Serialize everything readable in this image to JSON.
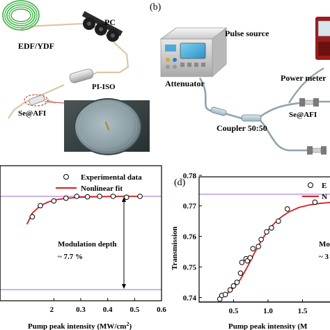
{
  "panels": {
    "a": {
      "labels": {
        "edf": "EDF/YDF",
        "pc": "PC",
        "pi_iso": "PI-ISO",
        "se_afi": "Se@AFI"
      }
    },
    "b": {
      "tag": "(b)",
      "labels": {
        "pulse_source": "Pulse source",
        "power_meter": "Power meter",
        "attenuator": "Attenuator",
        "se_afi": "Se@AFI",
        "coupler": "Coupler 50:50"
      }
    },
    "c": {
      "legend": {
        "experimental": "Experimental data",
        "fit": "Nonlinear fit"
      },
      "annotation": {
        "line1": "Modulation depth",
        "line2": "~ 7.7 %"
      },
      "xlabel": "Pump peak intensity (MW/cm",
      "xlabel_sup": "2",
      "xlabel_end": ")"
    },
    "d": {
      "tag": "(d)",
      "legend": {
        "experimental": "E",
        "fit": "N"
      },
      "annotation": {
        "line1": "Mo",
        "line2": "~ 3"
      },
      "xlabel": "Pump peak intensity (M",
      "ylabel": "Transmission"
    }
  },
  "chart_data": [
    {
      "type": "scatter",
      "panel": "c",
      "xlabel": "Pump peak intensity (MW/cm2)",
      "xlim": [
        0.0,
        0.6
      ],
      "x_ticks": [
        "2",
        "0.3",
        "0.4",
        "0.5",
        "0.6"
      ],
      "x_tick_values": [
        0.2,
        0.3,
        0.4,
        0.5,
        0.6
      ],
      "reference_lines": [
        "upper saturation level",
        "lower level"
      ],
      "series": [
        {
          "name": "Experimental data",
          "style": "hollow-circle",
          "x": [
            0.12,
            0.15,
            0.2,
            0.245,
            0.285,
            0.325,
            0.37,
            0.42,
            0.47,
            0.52
          ],
          "y_rel": [
            0.78,
            0.9,
            0.95,
            0.98,
            1.0,
            0.995,
            1.0,
            1.0,
            0.99,
            1.0
          ]
        },
        {
          "name": "Nonlinear fit",
          "style": "red-line",
          "x": [
            0.1,
            0.12,
            0.15,
            0.18,
            0.21,
            0.25,
            0.3,
            0.35,
            0.4,
            0.45,
            0.52
          ],
          "y_rel": [
            0.7,
            0.82,
            0.9,
            0.94,
            0.965,
            0.98,
            0.99,
            0.995,
            0.998,
            1.0,
            1.0
          ]
        }
      ],
      "modulation_depth_percent": 7.7,
      "colors": {
        "fit": "#d81e1e",
        "reference": "#b985d6",
        "points": "#000000"
      }
    },
    {
      "type": "scatter",
      "panel": "d",
      "xlabel": "Pump peak intensity (M",
      "ylabel": "Transmission",
      "ylim": [
        0.7385,
        0.7795
      ],
      "y_ticks": [
        0.74,
        0.75,
        0.76,
        0.77,
        0.78
      ],
      "x_ticks": [
        "0.5",
        "1.0",
        "1.5"
      ],
      "x_tick_values": [
        0.5,
        1.0,
        1.5
      ],
      "xlim": [
        0.0,
        2.02
      ],
      "reference_lines_y": [
        0.7738,
        0.7387
      ],
      "series": [
        {
          "name": "E",
          "style": "hollow-circle",
          "x": [
            0.3,
            0.33,
            0.38,
            0.45,
            0.5,
            0.55,
            0.6,
            0.62,
            0.68,
            0.7,
            0.74,
            0.78,
            0.86,
            0.9,
            0.98,
            1.05,
            1.15,
            1.28,
            1.68
          ],
          "y": [
            0.7395,
            0.7407,
            0.741,
            0.7425,
            0.7438,
            0.745,
            0.748,
            0.7515,
            0.7527,
            0.752,
            0.753,
            0.756,
            0.7567,
            0.759,
            0.7615,
            0.7628,
            0.765,
            0.769,
            0.7712
          ]
        },
        {
          "name": "N",
          "style": "red-line",
          "x": [
            0.3,
            0.4,
            0.5,
            0.6,
            0.7,
            0.8,
            0.9,
            1.0,
            1.1,
            1.2,
            1.3,
            1.45,
            1.6,
            1.75,
            1.9,
            2.02
          ],
          "y": [
            0.7398,
            0.7412,
            0.7432,
            0.746,
            0.75,
            0.7545,
            0.7585,
            0.762,
            0.7645,
            0.7665,
            0.768,
            0.7695,
            0.7703,
            0.7708,
            0.7711,
            0.7712
          ]
        }
      ],
      "colors": {
        "fit": "#d81e1e",
        "reference": "#b985d6",
        "points": "#000000"
      }
    }
  ]
}
